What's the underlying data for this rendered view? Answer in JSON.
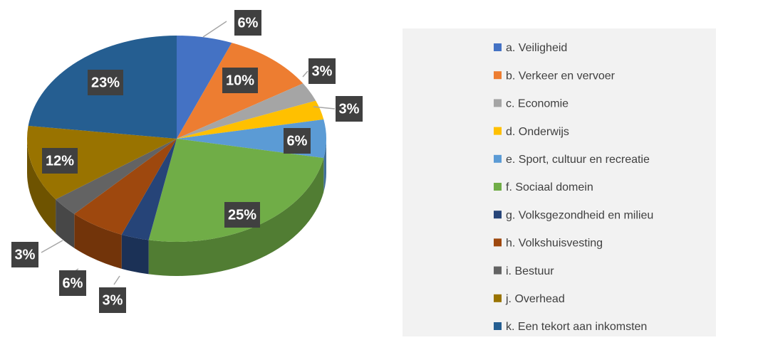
{
  "chart_data": {
    "type": "pie",
    "categories": [
      "a. Veiligheid",
      "b. Verkeer en vervoer",
      "c. Economie",
      "d. Onderwijs",
      "e. Sport, cultuur en recreatie",
      "f. Sociaal domein",
      "g. Volksgezondheid en milieu",
      "h. Volkshuisvesting",
      "i. Bestuur",
      "j. Overhead",
      "k. Een tekort aan inkomsten"
    ],
    "values": [
      6,
      10,
      3,
      3,
      6,
      25,
      3,
      6,
      3,
      12,
      23
    ],
    "value_labels": [
      "6%",
      "10%",
      "3%",
      "3%",
      "6%",
      "25%",
      "3%",
      "6%",
      "3%",
      "12%",
      "23%"
    ],
    "colors": [
      "#4472c4",
      "#ed7d31",
      "#a5a5a5",
      "#ffc000",
      "#5b9bd5",
      "#70ad47",
      "#264478",
      "#9e480e",
      "#636363",
      "#997300",
      "#255e91"
    ],
    "legend": "right"
  }
}
